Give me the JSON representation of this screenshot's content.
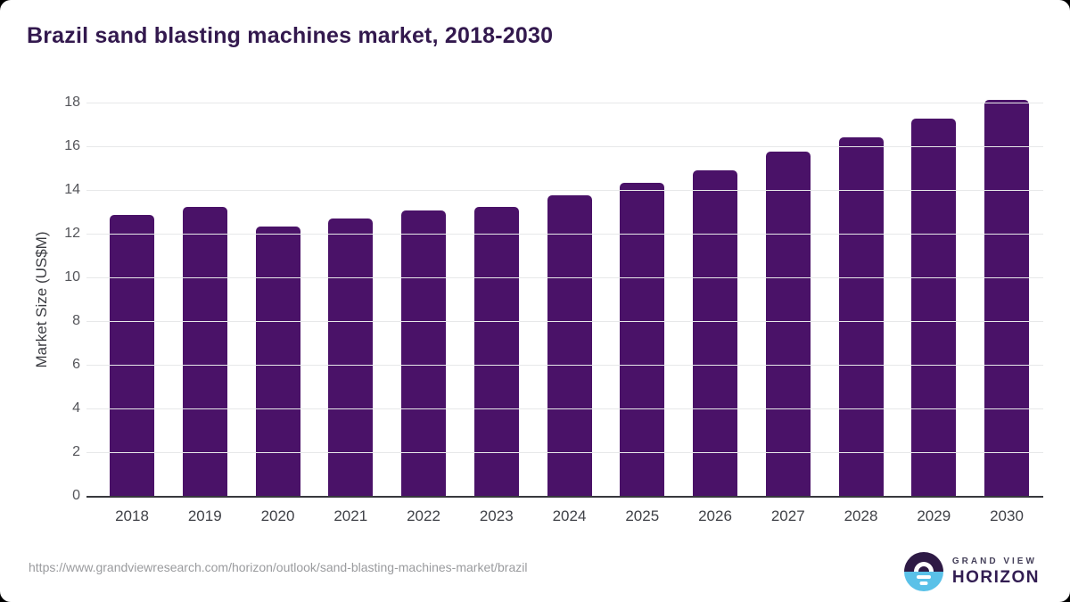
{
  "title": "Brazil sand blasting machines market, 2018-2030",
  "chart_data": {
    "type": "bar",
    "title": "Brazil sand blasting machines market, 2018-2030",
    "xlabel": "",
    "ylabel": "Market Size (US$M)",
    "categories": [
      "2018",
      "2019",
      "2020",
      "2021",
      "2022",
      "2023",
      "2024",
      "2025",
      "2026",
      "2027",
      "2028",
      "2029",
      "2030"
    ],
    "values": [
      12.9,
      13.25,
      12.35,
      12.75,
      13.1,
      13.25,
      13.8,
      14.35,
      14.95,
      15.8,
      16.45,
      17.3,
      18.15
    ],
    "yticks": [
      0,
      2,
      4,
      6,
      8,
      10,
      12,
      14,
      16,
      18
    ],
    "ylim": [
      0,
      18.6
    ],
    "grid": "horizontal",
    "legend": "none",
    "bar_color": "#4a1268",
    "title_color": "#33194e",
    "gridline_color": "#e7e8e9",
    "axis_line_color": "#37383d"
  },
  "footer": {
    "source_url": "https://www.grandviewresearch.com/horizon/outlook/sand-blasting-machines-market/brazil",
    "logo": {
      "line1": "GRAND VIEW",
      "line2": "HORIZON",
      "purple": "#2e1a45",
      "blue": "#5ac1e8"
    }
  }
}
